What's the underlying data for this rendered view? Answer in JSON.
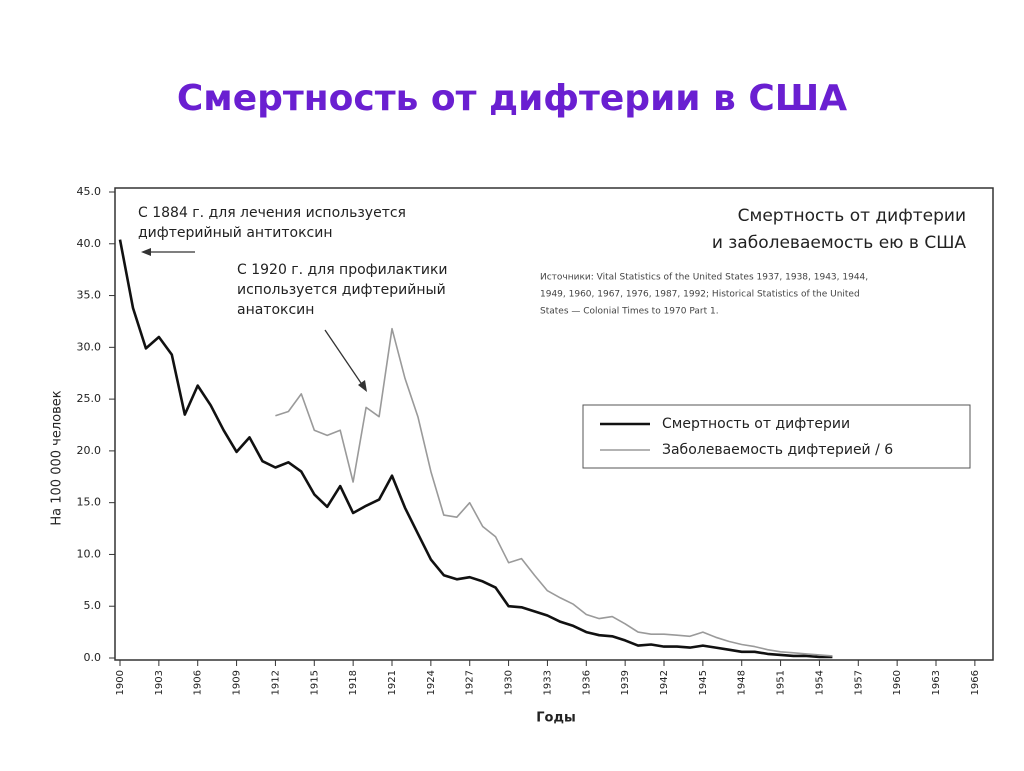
{
  "slide_title": "Смертность от дифтерии в США",
  "chart_data": {
    "type": "line",
    "title": [
      "Смертность от дифтерии",
      "и заболеваемость ею в США"
    ],
    "source": [
      "Источники: Vital Statistics of the United States 1937, 1938, 1943, 1944,",
      "1949, 1960, 1967, 1976, 1987, 1992; Historical Statistics of the United",
      "States — Colonial Times to 1970 Part 1."
    ],
    "annotations": [
      {
        "text": [
          "С 1884 г. для лечения используется",
          "дифтерийный антитоксин"
        ]
      },
      {
        "text": [
          "С 1920 г. для профилактики",
          "используется дифтерийный",
          "анатоксин"
        ]
      }
    ],
    "x_label": "Годы",
    "y_label": "На 100 000 человек",
    "x": [
      1900,
      1901,
      1902,
      1903,
      1904,
      1905,
      1906,
      1907,
      1908,
      1909,
      1910,
      1911,
      1912,
      1913,
      1914,
      1915,
      1916,
      1917,
      1918,
      1919,
      1920,
      1921,
      1922,
      1923,
      1924,
      1925,
      1926,
      1927,
      1928,
      1929,
      1930,
      1931,
      1932,
      1933,
      1934,
      1935,
      1936,
      1937,
      1938,
      1939,
      1940,
      1941,
      1942,
      1943,
      1944,
      1945,
      1946,
      1947,
      1948,
      1949,
      1950,
      1951,
      1952,
      1953,
      1954,
      1955
    ],
    "series": [
      {
        "name": "Смертность от дифтерии",
        "color": "#111111",
        "width": 2.6,
        "values": [
          40.4,
          33.8,
          29.9,
          31.0,
          29.3,
          23.5,
          26.3,
          24.4,
          22.0,
          19.9,
          21.3,
          19.0,
          18.4,
          18.9,
          18.0,
          15.8,
          14.6,
          16.6,
          14.0,
          14.7,
          15.3,
          17.6,
          14.5,
          12.0,
          9.5,
          8.0,
          7.6,
          7.8,
          7.4,
          6.8,
          5.0,
          4.9,
          4.5,
          4.1,
          3.5,
          3.1,
          2.5,
          2.2,
          2.1,
          1.7,
          1.2,
          1.3,
          1.1,
          1.1,
          1.0,
          1.2,
          1.0,
          0.8,
          0.6,
          0.6,
          0.4,
          0.3,
          0.2,
          0.2,
          0.1,
          0.1
        ]
      },
      {
        "name": "Заболеваемость дифтерией / 6",
        "color": "#9a9a9a",
        "width": 1.6,
        "values": [
          null,
          null,
          null,
          null,
          null,
          null,
          null,
          null,
          null,
          null,
          null,
          null,
          23.4,
          23.8,
          25.5,
          22.0,
          21.5,
          22.0,
          17.0,
          24.2,
          23.3,
          31.8,
          27.0,
          23.3,
          18.0,
          13.8,
          13.6,
          15.0,
          12.7,
          11.7,
          9.2,
          9.6,
          8.0,
          6.5,
          5.8,
          5.2,
          4.2,
          3.8,
          4.0,
          3.3,
          2.5,
          2.3,
          2.3,
          2.2,
          2.1,
          2.5,
          2.0,
          1.6,
          1.3,
          1.1,
          0.8,
          0.6,
          0.5,
          0.4,
          0.3,
          0.2
        ]
      }
    ],
    "xlim": [
      1900,
      1967.4
    ],
    "ylim": [
      0,
      45
    ],
    "xticks": [
      1900,
      1903,
      1906,
      1909,
      1912,
      1915,
      1918,
      1921,
      1924,
      1927,
      1930,
      1933,
      1936,
      1939,
      1942,
      1945,
      1948,
      1951,
      1954,
      1957,
      1960,
      1963,
      1966
    ],
    "yticks": [
      {
        "value": 0,
        "label": "0.0"
      },
      {
        "value": 5,
        "label": "5.0"
      },
      {
        "value": 10,
        "label": "10.0"
      },
      {
        "value": 15,
        "label": "15.0"
      },
      {
        "value": 20,
        "label": "20.0"
      },
      {
        "value": 25,
        "label": "25.0"
      },
      {
        "value": 30,
        "label": "30.0"
      },
      {
        "value": 35,
        "label": "35.0"
      },
      {
        "value": 40,
        "label": "40.0"
      },
      {
        "value": 45,
        "label": "45.0"
      }
    ],
    "legend": "right",
    "grid": false
  }
}
